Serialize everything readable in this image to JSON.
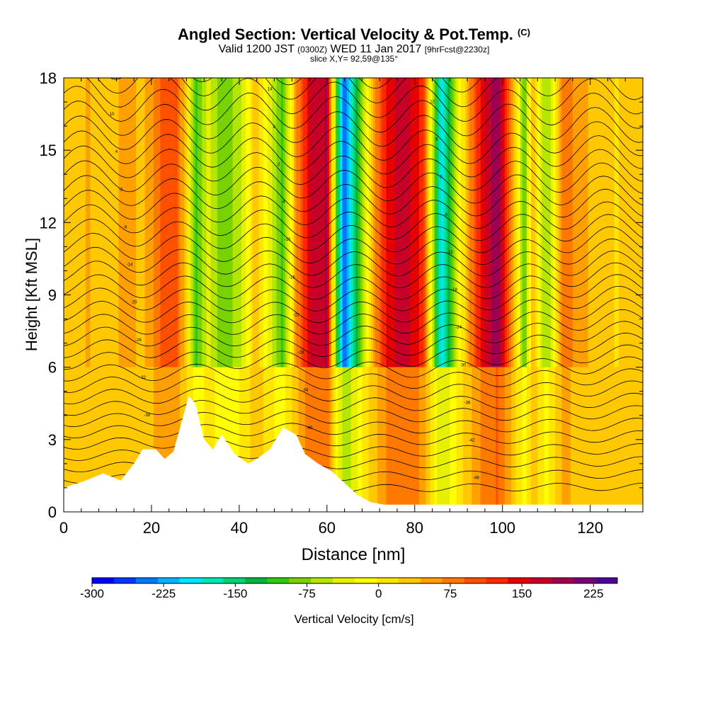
{
  "title": {
    "main": "Angled Section: Vertical Velocity & Pot.Temp.",
    "unit": "(C)",
    "subtitle_valid": "Valid 1200 JST",
    "subtitle_z": "(0300Z)",
    "subtitle_date": "WED 11 Jan 2017",
    "subtitle_fcst": "[9hrFcst@2230z]",
    "slice": "slice X,Y= 92,59@135°"
  },
  "chart_data": {
    "type": "heatmap",
    "xlabel": "Distance [nm]",
    "ylabel": "Height [Kft MSL]",
    "xlim": [
      0,
      132
    ],
    "ylim": [
      0,
      18
    ],
    "xticks": [
      0,
      20,
      40,
      60,
      80,
      100,
      120
    ],
    "yticks": [
      0,
      3,
      6,
      9,
      12,
      15,
      18
    ],
    "colorbar": {
      "label": "Vertical Velocity [cm/s]",
      "min": -300,
      "max": 250,
      "ticks": [
        -300,
        -225,
        -150,
        -75,
        0,
        75,
        150,
        225
      ],
      "colors": [
        "#0000ff",
        "#0038ff",
        "#0078ff",
        "#00b4ff",
        "#00e6ff",
        "#00e6b4",
        "#00d278",
        "#00b43c",
        "#32c814",
        "#78d200",
        "#b4e600",
        "#e6f000",
        "#ffff00",
        "#ffe600",
        "#ffc800",
        "#ffa000",
        "#ff7800",
        "#ff5000",
        "#ff2800",
        "#e60000",
        "#c80028",
        "#a00050",
        "#780078",
        "#500096"
      ]
    },
    "velocity_bands": [
      {
        "x": 0,
        "v": 35
      },
      {
        "x": 6,
        "v": 45
      },
      {
        "x": 10,
        "v": 20
      },
      {
        "x": 14,
        "v": 55
      },
      {
        "x": 18,
        "v": 35
      },
      {
        "x": 22,
        "v": 90
      },
      {
        "x": 26,
        "v": 90
      },
      {
        "x": 28,
        "v": 20
      },
      {
        "x": 30,
        "v": -110
      },
      {
        "x": 33,
        "v": -40
      },
      {
        "x": 36,
        "v": -90
      },
      {
        "x": 40,
        "v": -60
      },
      {
        "x": 44,
        "v": 40
      },
      {
        "x": 47,
        "v": -40
      },
      {
        "x": 50,
        "v": -100
      },
      {
        "x": 53,
        "v": 60
      },
      {
        "x": 56,
        "v": 160
      },
      {
        "x": 60,
        "v": 185
      },
      {
        "x": 62,
        "v": -80
      },
      {
        "x": 64,
        "v": -260
      },
      {
        "x": 67,
        "v": -120
      },
      {
        "x": 70,
        "v": 30
      },
      {
        "x": 74,
        "v": 150
      },
      {
        "x": 78,
        "v": 175
      },
      {
        "x": 82,
        "v": 120
      },
      {
        "x": 84,
        "v": -40
      },
      {
        "x": 86,
        "v": -200
      },
      {
        "x": 88,
        "v": -120
      },
      {
        "x": 91,
        "v": 10
      },
      {
        "x": 95,
        "v": 140
      },
      {
        "x": 99,
        "v": 205
      },
      {
        "x": 102,
        "v": 70
      },
      {
        "x": 105,
        "v": -90
      },
      {
        "x": 107,
        "v": 40
      },
      {
        "x": 110,
        "v": -80
      },
      {
        "x": 114,
        "v": 80
      },
      {
        "x": 120,
        "v": 40
      },
      {
        "x": 126,
        "v": 20
      },
      {
        "x": 132,
        "v": 40
      }
    ],
    "terrain": [
      {
        "x": 0,
        "h": 1.0
      },
      {
        "x": 5,
        "h": 1.3
      },
      {
        "x": 9,
        "h": 1.6
      },
      {
        "x": 13,
        "h": 1.3
      },
      {
        "x": 16,
        "h": 2.0
      },
      {
        "x": 18,
        "h": 2.6
      },
      {
        "x": 21,
        "h": 2.6
      },
      {
        "x": 23,
        "h": 2.2
      },
      {
        "x": 25,
        "h": 2.5
      },
      {
        "x": 27,
        "h": 3.8
      },
      {
        "x": 28.5,
        "h": 4.8
      },
      {
        "x": 30,
        "h": 4.5
      },
      {
        "x": 32,
        "h": 3.0
      },
      {
        "x": 34,
        "h": 2.6
      },
      {
        "x": 36,
        "h": 3.2
      },
      {
        "x": 39,
        "h": 2.4
      },
      {
        "x": 42,
        "h": 2.0
      },
      {
        "x": 44,
        "h": 2.2
      },
      {
        "x": 47,
        "h": 2.6
      },
      {
        "x": 50,
        "h": 3.5
      },
      {
        "x": 53,
        "h": 3.2
      },
      {
        "x": 55,
        "h": 2.4
      },
      {
        "x": 58,
        "h": 2.0
      },
      {
        "x": 61,
        "h": 1.7
      },
      {
        "x": 64,
        "h": 1.2
      },
      {
        "x": 67,
        "h": 0.7
      },
      {
        "x": 70,
        "h": 0.4
      },
      {
        "x": 73,
        "h": 0.3
      },
      {
        "x": 132,
        "h": 0.3
      }
    ],
    "contour_labels": [
      "16",
      "14",
      "12",
      "10",
      "8",
      "6",
      "4",
      "2",
      "0",
      "-2",
      "-4",
      "-6",
      "-8",
      "-10",
      "-12",
      "-14",
      "-16",
      "-18",
      "-20",
      "-22",
      "-24",
      "-26",
      "-28",
      "-30",
      "-32",
      "-34",
      "-36",
      "-38",
      "-40",
      "-42",
      "-44",
      "-46",
      "-48",
      "-50"
    ]
  }
}
